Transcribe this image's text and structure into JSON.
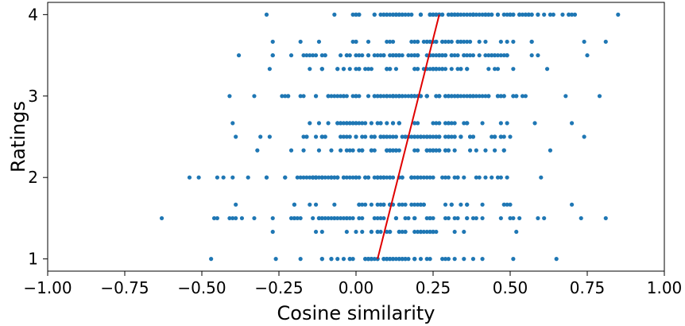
{
  "chart_data": {
    "type": "scatter",
    "title": "",
    "xlabel": "Cosine similarity",
    "ylabel": "Ratings",
    "xlim": [
      -1.0,
      1.0
    ],
    "ylim": [
      0.85,
      4.15
    ],
    "x_ticks": [
      -1.0,
      -0.75,
      -0.5,
      -0.25,
      0.0,
      0.25,
      0.5,
      0.75,
      1.0
    ],
    "x_tick_labels": [
      "−1.00",
      "−0.75",
      "−0.50",
      "−0.25",
      "0.00",
      "0.25",
      "0.50",
      "0.75",
      "1.00"
    ],
    "y_ticks": [
      1,
      2,
      3,
      4
    ],
    "y_tick_labels": [
      "1",
      "2",
      "3",
      "4"
    ],
    "grid": false,
    "point_color": "#1f77b4",
    "fit_line_color": "#e00000",
    "rating_levels": [
      1.0,
      1.333,
      1.5,
      1.667,
      2.0,
      2.333,
      2.5,
      2.667,
      3.0,
      3.333,
      3.5,
      3.667,
      4.0
    ],
    "scatter_ranges": [
      {
        "rating": 1.0,
        "min": -0.47,
        "max": 0.65,
        "count": 55
      },
      {
        "rating": 1.333,
        "min": -0.27,
        "max": 0.52,
        "count": 35
      },
      {
        "rating": 1.5,
        "min": -0.63,
        "max": 0.81,
        "count": 70
      },
      {
        "rating": 1.667,
        "min": -0.39,
        "max": 0.7,
        "count": 40
      },
      {
        "rating": 2.0,
        "min": -0.54,
        "max": 0.6,
        "count": 95
      },
      {
        "rating": 2.333,
        "min": -0.32,
        "max": 0.63,
        "count": 55
      },
      {
        "rating": 2.5,
        "min": -0.39,
        "max": 0.74,
        "count": 80
      },
      {
        "rating": 2.667,
        "min": -0.4,
        "max": 0.7,
        "count": 50
      },
      {
        "rating": 3.0,
        "min": -0.41,
        "max": 0.79,
        "count": 120
      },
      {
        "rating": 3.333,
        "min": -0.28,
        "max": 0.62,
        "count": 50
      },
      {
        "rating": 3.5,
        "min": -0.38,
        "max": 0.75,
        "count": 85
      },
      {
        "rating": 3.667,
        "min": -0.27,
        "max": 0.81,
        "count": 45
      },
      {
        "rating": 4.0,
        "min": -0.29,
        "max": 0.85,
        "count": 110
      }
    ],
    "fit_line": {
      "x": [
        0.07,
        0.27
      ],
      "y": [
        1.0,
        4.0
      ]
    }
  }
}
